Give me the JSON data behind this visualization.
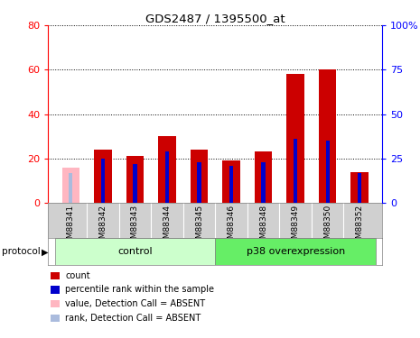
{
  "title": "GDS2487 / 1395500_at",
  "samples": [
    "GSM88341",
    "GSM88342",
    "GSM88343",
    "GSM88344",
    "GSM88345",
    "GSM88346",
    "GSM88348",
    "GSM88349",
    "GSM88350",
    "GSM88352"
  ],
  "count_values": [
    0,
    24,
    21,
    30,
    24,
    19,
    23,
    58,
    60,
    14
  ],
  "rank_values": [
    0,
    25,
    22,
    29,
    23,
    21,
    23,
    36,
    35,
    17
  ],
  "absent_count": [
    16,
    0,
    0,
    0,
    0,
    0,
    0,
    0,
    0,
    0
  ],
  "absent_rank": [
    17,
    0,
    0,
    0,
    0,
    0,
    0,
    0,
    0,
    0
  ],
  "is_absent": [
    true,
    false,
    false,
    false,
    false,
    false,
    false,
    false,
    false,
    false
  ],
  "ylim_left": [
    0,
    80
  ],
  "ylim_right": [
    0,
    100
  ],
  "yticks_left": [
    0,
    20,
    40,
    60,
    80
  ],
  "yticks_right": [
    0,
    25,
    50,
    75,
    100
  ],
  "ytick_labels_right": [
    "0",
    "25",
    "50",
    "75",
    "100%"
  ],
  "wide_bar_width": 0.55,
  "narrow_bar_width": 0.12,
  "color_count": "#cc0000",
  "color_rank": "#0000cc",
  "color_absent_count": "#ffb6c1",
  "color_absent_rank": "#aabbdd",
  "bg_control": "#ccffcc",
  "bg_p38": "#66ee66",
  "legend_items": [
    {
      "label": "count",
      "color": "#cc0000"
    },
    {
      "label": "percentile rank within the sample",
      "color": "#0000cc"
    },
    {
      "label": "value, Detection Call = ABSENT",
      "color": "#ffb6c1"
    },
    {
      "label": "rank, Detection Call = ABSENT",
      "color": "#aabbdd"
    }
  ],
  "control_indices": [
    0,
    1,
    2,
    3,
    4
  ],
  "p38_indices": [
    5,
    6,
    7,
    8,
    9
  ]
}
